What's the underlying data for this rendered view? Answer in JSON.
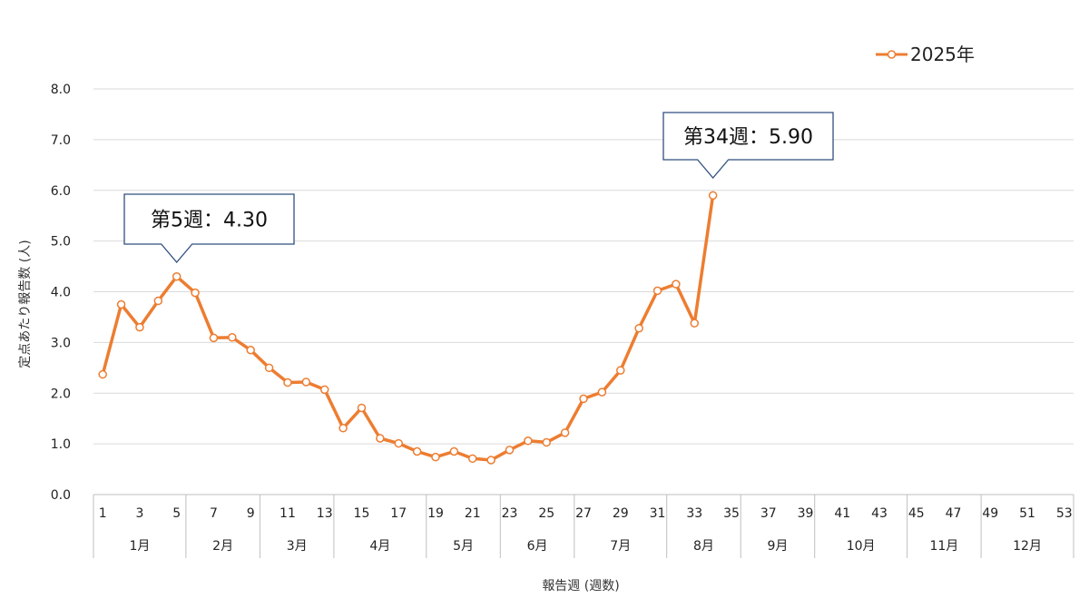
{
  "chart_data": {
    "type": "line",
    "xlabel": "報告週 (週数)",
    "ylabel": "定点あたり報告数 (人)",
    "ylim": [
      0,
      8
    ],
    "yticks": [
      "0.0",
      "1.0",
      "2.0",
      "3.0",
      "4.0",
      "5.0",
      "6.0",
      "7.0",
      "8.0"
    ],
    "xlim": [
      1,
      53
    ],
    "xticks": [
      "1",
      "3",
      "5",
      "7",
      "9",
      "11",
      "13",
      "15",
      "17",
      "19",
      "21",
      "23",
      "25",
      "27",
      "29",
      "31",
      "33",
      "35",
      "37",
      "39",
      "41",
      "43",
      "45",
      "47",
      "49",
      "51",
      "53"
    ],
    "months": [
      {
        "label": "1月",
        "start_week": 1,
        "end_week": 5
      },
      {
        "label": "2月",
        "start_week": 6,
        "end_week": 9
      },
      {
        "label": "3月",
        "start_week": 10,
        "end_week": 13
      },
      {
        "label": "4月",
        "start_week": 14,
        "end_week": 18
      },
      {
        "label": "5月",
        "start_week": 19,
        "end_week": 22
      },
      {
        "label": "6月",
        "start_week": 23,
        "end_week": 26
      },
      {
        "label": "7月",
        "start_week": 27,
        "end_week": 31
      },
      {
        "label": "8月",
        "start_week": 32,
        "end_week": 35
      },
      {
        "label": "9月",
        "start_week": 36,
        "end_week": 39
      },
      {
        "label": "10月",
        "start_week": 40,
        "end_week": 44
      },
      {
        "label": "11月",
        "start_week": 45,
        "end_week": 48
      },
      {
        "label": "12月",
        "start_week": 49,
        "end_week": 53
      }
    ],
    "series": [
      {
        "name": "2025年",
        "color": "#ED7D31",
        "x": [
          1,
          2,
          3,
          4,
          5,
          6,
          7,
          8,
          9,
          10,
          11,
          12,
          13,
          14,
          15,
          16,
          17,
          18,
          19,
          20,
          21,
          22,
          23,
          24,
          25,
          26,
          27,
          28,
          29,
          30,
          31,
          32,
          33,
          34
        ],
        "values": [
          2.37,
          3.75,
          3.3,
          3.82,
          4.3,
          3.98,
          3.09,
          3.1,
          2.85,
          2.5,
          2.21,
          2.22,
          2.07,
          1.31,
          1.71,
          1.11,
          1.01,
          0.85,
          0.74,
          0.85,
          0.71,
          0.68,
          0.88,
          1.06,
          1.03,
          1.22,
          1.89,
          2.02,
          2.45,
          3.28,
          4.02,
          4.15,
          3.38,
          5.9
        ]
      }
    ],
    "annotations": [
      {
        "text": "第5週：4.30",
        "week": 5,
        "value": 4.3
      },
      {
        "text": "第34週：5.90",
        "week": 34,
        "value": 5.9
      }
    ],
    "grid": true,
    "legend": "top-right"
  }
}
